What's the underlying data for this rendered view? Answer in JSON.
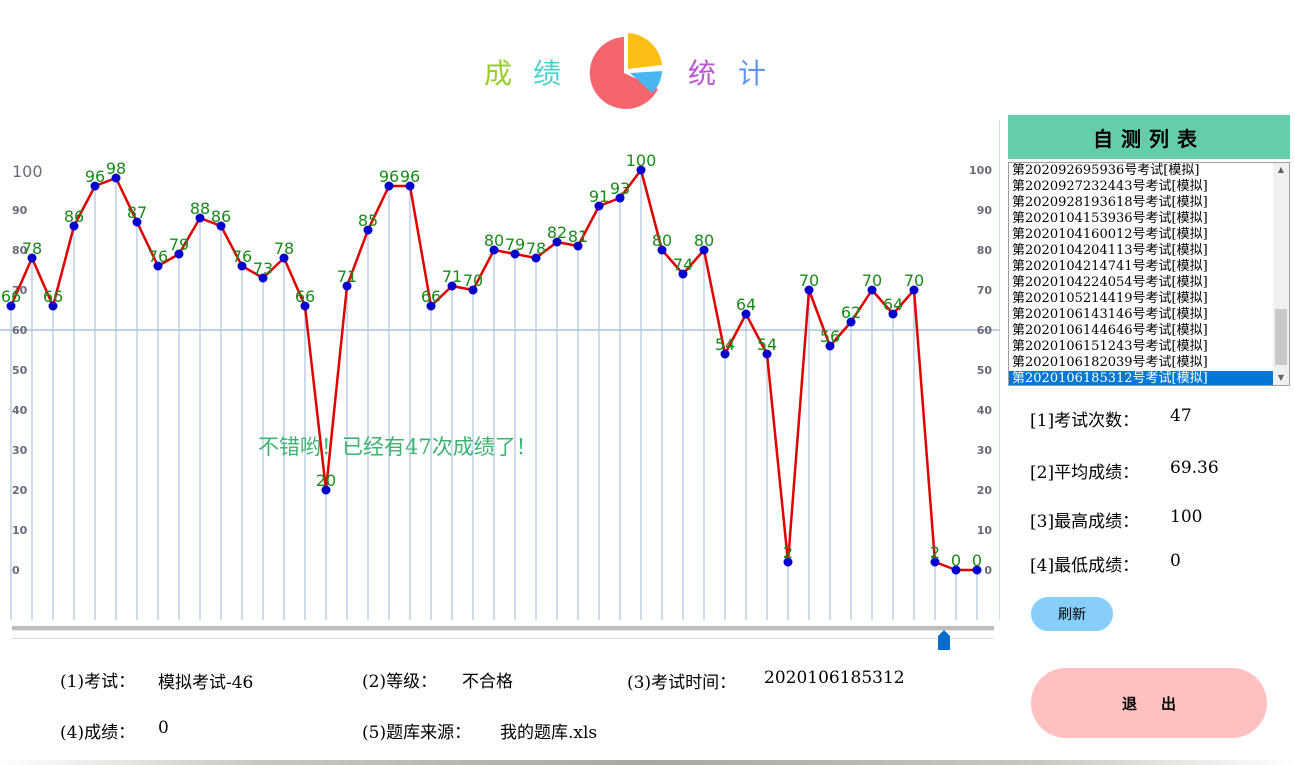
{
  "title": {
    "parts": [
      "成",
      "绩",
      "统",
      "计"
    ],
    "colors": [
      "#9acd32",
      "#48d1cc",
      "#ba55d3",
      "#6495ed"
    ]
  },
  "chart_data": {
    "type": "line",
    "x": [
      1,
      2,
      3,
      4,
      5,
      6,
      7,
      8,
      9,
      10,
      11,
      12,
      13,
      14,
      15,
      16,
      17,
      18,
      19,
      20,
      21,
      22,
      23,
      24,
      25,
      26,
      27,
      28,
      29,
      30,
      31,
      32,
      33,
      34,
      35,
      36,
      37,
      38,
      39,
      40,
      41,
      42,
      43,
      44,
      45,
      46,
      47
    ],
    "values": [
      66,
      78,
      66,
      86,
      96,
      98,
      87,
      76,
      79,
      88,
      86,
      76,
      73,
      78,
      66,
      20,
      71,
      85,
      96,
      96,
      66,
      71,
      70,
      80,
      79,
      78,
      82,
      81,
      91,
      93,
      100,
      80,
      74,
      80,
      54,
      64,
      54,
      2,
      70,
      56,
      62,
      70,
      64,
      70,
      2,
      0,
      0
    ],
    "y_ticks_left": [
      "100",
      "90",
      "80",
      "70",
      "60",
      "50",
      "40",
      "30",
      "20",
      "10",
      "0"
    ],
    "y_ticks_right": [
      "100",
      "90",
      "80",
      "70",
      "60",
      "50",
      "40",
      "30",
      "20",
      "10",
      "0"
    ],
    "ylim": [
      0,
      100
    ],
    "reference_line": 60,
    "annotation": "不错哟！已经有47次成绩了！",
    "line_color": "#e00000",
    "point_color": "#0000cc",
    "label_color": "#1a8a1a",
    "grid_color": "#bcd0e6"
  },
  "panel": {
    "header": "自测列表",
    "items": [
      "第202092695936号考试[模拟]",
      "第2020927232443号考试[模拟]",
      "第2020928193618号考试[模拟]",
      "第2020104153936号考试[模拟]",
      "第2020104160012号考试[模拟]",
      "第2020104204113号考试[模拟]",
      "第2020104214741号考试[模拟]",
      "第2020104224054号考试[模拟]",
      "第2020105214419号考试[模拟]",
      "第2020106143146号考试[模拟]",
      "第2020106144646号考试[模拟]",
      "第2020106151243号考试[模拟]",
      "第2020106182039号考试[模拟]",
      "第2020106185312号考试[模拟]"
    ],
    "selected_index": 13
  },
  "stats": {
    "count_label": "[1]考试次数：",
    "count_value": "47",
    "avg_label": "[2]平均成绩：",
    "avg_value": "69.36",
    "max_label": "[3]最高成绩：",
    "max_value": "100",
    "min_label": "[4]最低成绩：",
    "min_value": "0"
  },
  "buttons": {
    "refresh": "刷新",
    "exit": "退出"
  },
  "details": {
    "exam_label": "(1)考试：",
    "exam_value": "模拟考试-46",
    "grade_label": "(2)等级：",
    "grade_value": "不合格",
    "time_label": "(3)考试时间：",
    "time_value": "2020106185312",
    "score_label": "(4)成绩：",
    "score_value": "0",
    "source_label": "(5)题库来源：",
    "source_value": "我的题库.xls"
  }
}
